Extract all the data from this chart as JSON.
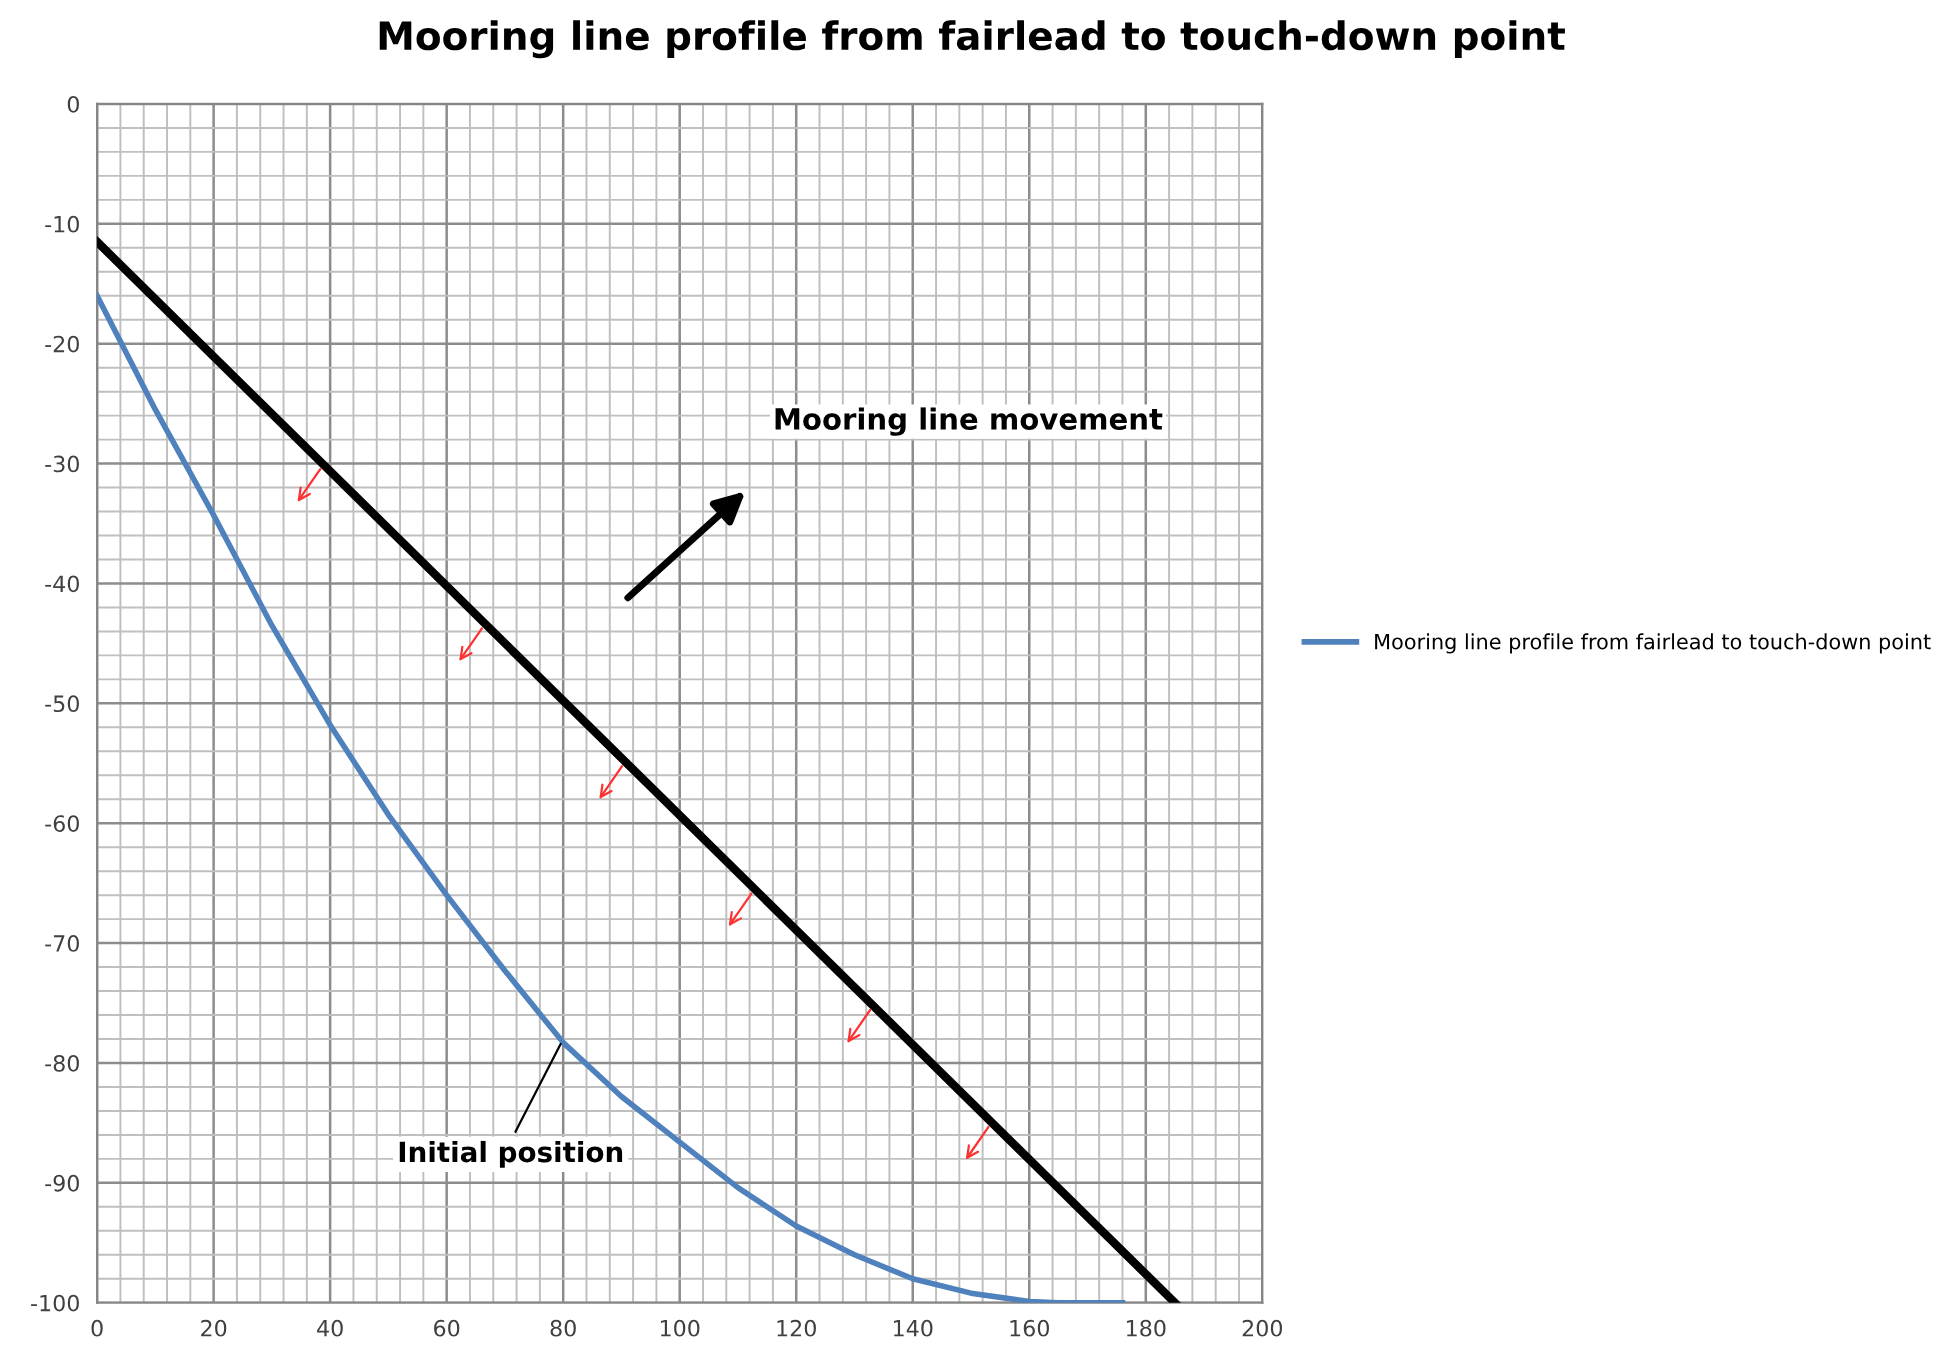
{
  "chart_data": {
    "type": "line",
    "title": "Mooring line profile from fairlead to touch-down point",
    "series": [
      {
        "name": "Mooring line profile from fairlead to touch-down point",
        "color": "#4f81bd",
        "x": [
          0,
          10,
          20,
          30,
          40,
          50,
          60,
          70,
          80,
          90,
          100,
          110,
          120,
          130,
          140,
          150,
          160,
          165,
          176
        ],
        "values": [
          -16,
          -25.5,
          -34.3,
          -43.5,
          -51.8,
          -59.3,
          -66,
          -72.3,
          -78.3,
          -82.8,
          -86.6,
          -90.4,
          -93.6,
          -96,
          -98,
          -99.2,
          -99.9,
          -100,
          -100
        ]
      },
      {
        "color": "#000000",
        "x": [
          0,
          185
        ],
        "values": [
          -11.5,
          -100
        ]
      }
    ],
    "xlim": [
      0,
      200
    ],
    "xticks": [
      0,
      20,
      40,
      60,
      80,
      100,
      120,
      140,
      160,
      180,
      200
    ],
    "ylim": [
      -100,
      0
    ],
    "yticks": [
      -100,
      -90,
      -80,
      -70,
      -60,
      -50,
      -40,
      -30,
      -20,
      -10,
      0
    ],
    "grid": true,
    "legend": "right",
    "annotations": [
      {
        "text": "Initial position",
        "x": 80,
        "y": -78
      },
      "Mooring line movement"
    ]
  }
}
